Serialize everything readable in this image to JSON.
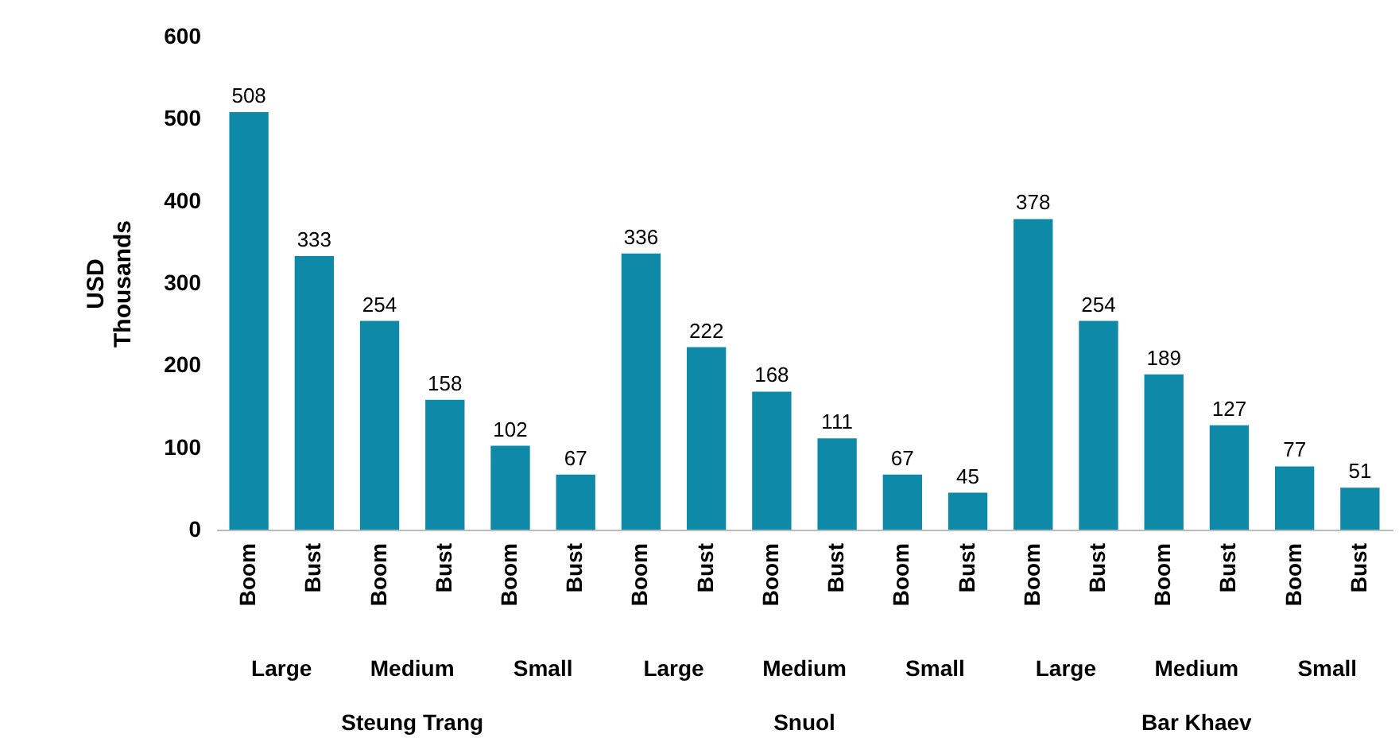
{
  "chart_data": {
    "type": "bar",
    "ylabel": "USD\nThousands",
    "categories": [
      "Boom",
      "Bust",
      "Boom",
      "Bust",
      "Boom",
      "Bust",
      "Boom",
      "Bust",
      "Boom",
      "Bust",
      "Boom",
      "Bust",
      "Boom",
      "Bust",
      "Boom",
      "Bust",
      "Boom",
      "Bust"
    ],
    "values": [
      508,
      333,
      254,
      158,
      102,
      67,
      336,
      222,
      168,
      111,
      67,
      45,
      378,
      254,
      189,
      127,
      77,
      51
    ],
    "color": "#0e8aa8",
    "ylim": [
      0,
      600
    ],
    "yticks": [
      0,
      100,
      200,
      300,
      400,
      500,
      600
    ],
    "grid": false,
    "data_labels": true,
    "annotations": [
      "Large",
      "Medium",
      "Small",
      "Large",
      "Medium",
      "Small",
      "Large",
      "Medium",
      "Small",
      "Steung Trang",
      "Snuol",
      "Bar Khaev"
    ]
  }
}
